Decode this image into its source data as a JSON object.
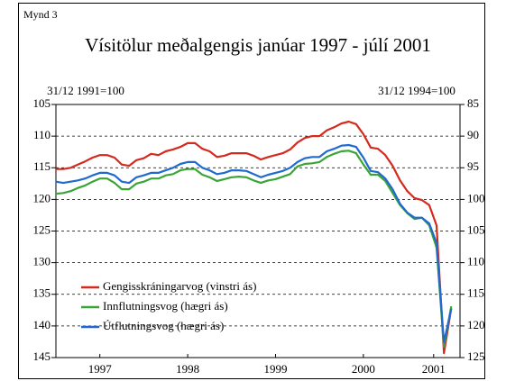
{
  "figure_label": "Mynd 3",
  "chart_data": {
    "type": "line",
    "title": "Vísitölur meðalgengis janúar 1997 - júlí 2001",
    "y_axis_label": "31/12 1991=100",
    "y2_axis_label": "31/12 1994=100",
    "x": [
      1997,
      1997.083,
      1997.167,
      1997.25,
      1997.333,
      1997.417,
      1997.5,
      1997.583,
      1997.667,
      1997.75,
      1997.833,
      1997.917,
      1998,
      1998.083,
      1998.167,
      1998.25,
      1998.333,
      1998.417,
      1998.5,
      1998.583,
      1998.667,
      1998.75,
      1998.833,
      1998.917,
      1999,
      1999.083,
      1999.167,
      1999.25,
      1999.333,
      1999.417,
      1999.5,
      1999.583,
      1999.667,
      1999.75,
      1999.833,
      1999.917,
      2000,
      2000.083,
      2000.167,
      2000.25,
      2000.333,
      2000.417,
      2000.5,
      2000.583,
      2000.667,
      2000.75,
      2000.833,
      2000.917,
      2001,
      2001.083,
      2001.167,
      2001.25,
      2001.333,
      2001.417,
      2001.5
    ],
    "xlim": [
      1997,
      2001.6
    ],
    "xticks": [
      {
        "value": 1997.5,
        "label": "1997"
      },
      {
        "value": 1998.5,
        "label": "1998"
      },
      {
        "value": 1999.5,
        "label": "1999"
      },
      {
        "value": 2000.5,
        "label": "2000"
      },
      {
        "value": 2001.3,
        "label": "2001"
      }
    ],
    "ylim": [
      105,
      145
    ],
    "yticks": [
      105,
      110,
      115,
      120,
      125,
      130,
      135,
      140,
      145
    ],
    "y2lim": [
      85,
      125
    ],
    "y2ticks": [
      85,
      90,
      95,
      100,
      105,
      110,
      115,
      120,
      125
    ],
    "y_reversed": true,
    "grid": true,
    "legend": "lower left",
    "series": [
      {
        "name": "Gengisskráningarvog (vinstri ás)",
        "color": "#d42a1e",
        "axis": "y",
        "values": [
          115.2,
          115.2,
          115.0,
          114.5,
          114.0,
          113.4,
          113.0,
          113.0,
          113.4,
          114.5,
          114.7,
          113.8,
          113.5,
          112.8,
          113.0,
          112.4,
          112.1,
          111.7,
          111.1,
          111.1,
          112.0,
          112.4,
          113.3,
          113.1,
          112.7,
          112.7,
          112.7,
          113.1,
          113.7,
          113.3,
          113.0,
          112.7,
          112.1,
          111.0,
          110.3,
          110.0,
          110.0,
          109.1,
          108.6,
          108.0,
          107.7,
          108.1,
          109.7,
          111.8,
          112.0,
          113.0,
          114.7,
          117.0,
          118.7,
          119.8,
          120.1,
          120.9,
          124.1,
          144.3,
          137.2
        ]
      },
      {
        "name": "Innflutningsvog (hægri ás)",
        "color": "#3aa535",
        "axis": "y2",
        "values": [
          99.1,
          99.0,
          98.7,
          98.2,
          97.8,
          97.2,
          96.7,
          96.7,
          97.4,
          98.4,
          98.4,
          97.5,
          97.2,
          96.7,
          96.7,
          96.2,
          96.0,
          95.4,
          95.2,
          95.2,
          96.1,
          96.5,
          97.1,
          96.8,
          96.5,
          96.4,
          96.5,
          97.0,
          97.4,
          97.0,
          96.8,
          96.4,
          96.0,
          94.8,
          94.4,
          94.3,
          94.1,
          93.3,
          92.8,
          92.4,
          92.3,
          92.7,
          94.5,
          96.1,
          96.1,
          97.1,
          99.0,
          100.9,
          102.2,
          103.1,
          102.9,
          104.1,
          107.6,
          123.3,
          116.9
        ]
      },
      {
        "name": "Útflutningsvog (hægri ás)",
        "color": "#1f6ad0",
        "axis": "y2",
        "values": [
          97.2,
          97.4,
          97.2,
          97.0,
          96.7,
          96.2,
          95.8,
          95.8,
          96.2,
          97.2,
          97.4,
          96.5,
          96.2,
          95.8,
          95.8,
          95.4,
          95.0,
          94.4,
          94.1,
          94.1,
          95.0,
          95.4,
          96.0,
          95.8,
          95.4,
          95.4,
          95.5,
          96.0,
          96.5,
          96.1,
          95.8,
          95.5,
          95.0,
          94.1,
          93.5,
          93.3,
          93.3,
          92.4,
          92.0,
          91.5,
          91.4,
          91.7,
          93.4,
          95.5,
          95.7,
          96.7,
          98.4,
          100.7,
          102.1,
          102.9,
          102.9,
          103.8,
          106.9,
          122.6,
          117.3
        ]
      }
    ]
  }
}
